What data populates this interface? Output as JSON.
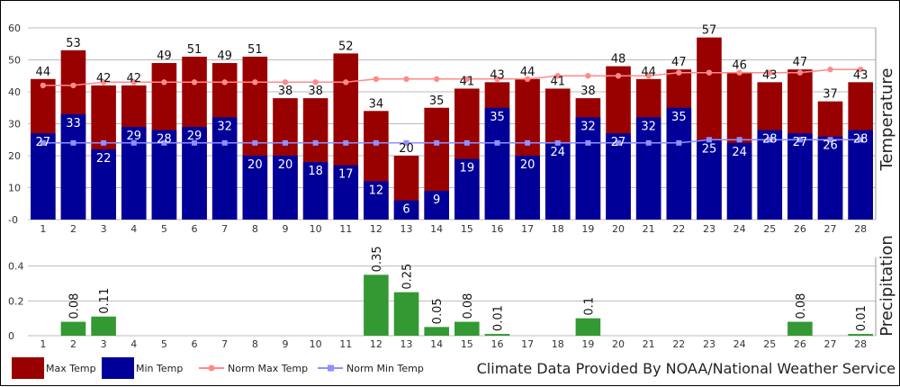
{
  "chart_data": {
    "type": "bar",
    "days": [
      1,
      2,
      3,
      4,
      5,
      6,
      7,
      8,
      9,
      10,
      11,
      12,
      13,
      14,
      15,
      16,
      17,
      18,
      19,
      20,
      21,
      22,
      23,
      24,
      25,
      26,
      27,
      28
    ],
    "temperature": {
      "ylabel": "Temperature",
      "ylim": [
        0,
        60
      ],
      "ticks": [
        "-0",
        "10",
        "20",
        "30",
        "40",
        "50",
        "60"
      ],
      "series": [
        {
          "name": "Max Temp",
          "color": "#990000",
          "values": [
            44,
            53,
            42,
            42,
            49,
            51,
            49,
            51,
            38,
            38,
            52,
            34,
            20,
            35,
            41,
            43,
            44,
            41,
            38,
            48,
            44,
            47,
            57,
            46,
            43,
            47,
            37,
            43
          ]
        },
        {
          "name": "Min Temp",
          "color": "#000099",
          "values": [
            27,
            33,
            22,
            29,
            28,
            29,
            32,
            20,
            20,
            18,
            17,
            12,
            6,
            9,
            19,
            35,
            20,
            24,
            32,
            27,
            32,
            35,
            25,
            24,
            28,
            27,
            26,
            28
          ]
        },
        {
          "name": "Norm Max Temp",
          "color": "#ff8a8a",
          "values": [
            42,
            42,
            43,
            43,
            43,
            43,
            43,
            43,
            43,
            43,
            43,
            44,
            44,
            44,
            44,
            44,
            44,
            45,
            45,
            45,
            45,
            46,
            46,
            46,
            46,
            46,
            47,
            47
          ]
        },
        {
          "name": "Norm Min Temp",
          "color": "#8f8fff",
          "values": [
            24,
            24,
            24,
            24,
            24,
            24,
            24,
            24,
            24,
            24,
            24,
            24,
            24,
            24,
            24,
            24,
            24,
            24,
            24,
            24,
            24,
            24,
            25,
            25,
            25,
            25,
            25,
            25
          ]
        }
      ]
    },
    "precipitation": {
      "ylabel": "Precipitation",
      "ylim": [
        0,
        0.45
      ],
      "ticks": [
        "0",
        "0.2",
        "0.4"
      ],
      "series": [
        {
          "name": "Precipitation",
          "color": "#339933",
          "values": [
            0,
            0.08,
            0.11,
            0,
            0,
            0,
            0,
            0,
            0,
            0,
            0,
            0.35,
            0.25,
            0.05,
            0.08,
            0.01,
            0,
            0,
            0.1,
            0,
            0,
            0,
            0,
            0,
            0,
            0.08,
            0,
            0.01
          ],
          "labels": [
            "",
            "0.08",
            "0.11",
            "",
            "",
            "",
            "",
            "",
            "",
            "",
            "",
            "0.35",
            "0.25",
            "0.05",
            "0.08",
            "0.01",
            "",
            "",
            "0.1",
            "",
            "",
            "",
            "",
            "",
            "",
            "0.08",
            "",
            "0.01"
          ]
        }
      ]
    },
    "legend": [
      "Max Temp",
      "Min Temp",
      "Norm Max Temp",
      "Norm Min Temp"
    ],
    "source": "Climate Data Provided By NOAA/National Weather Service"
  }
}
